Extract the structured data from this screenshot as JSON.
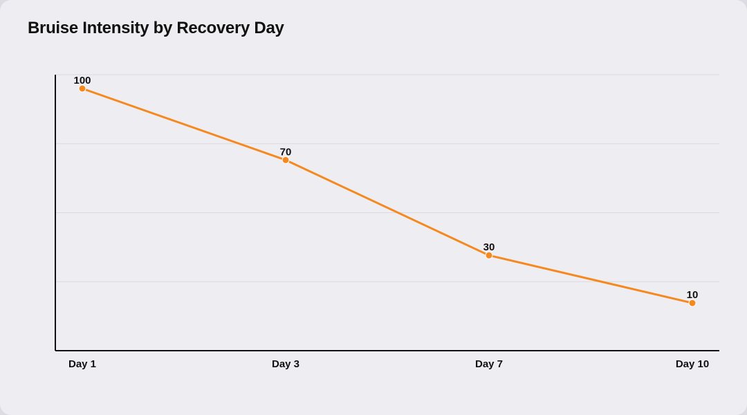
{
  "chart_data": {
    "type": "line",
    "title": "Bruise Intensity by Recovery Day",
    "xlabel": "",
    "ylabel": "",
    "categories": [
      "Day 1",
      "Day 3",
      "Day 7",
      "Day 10"
    ],
    "series": [
      {
        "values": [
          100,
          70,
          30,
          10
        ]
      }
    ],
    "ylim": [
      -10,
      100
    ],
    "grid": true,
    "legend": "none",
    "colors": {
      "line": "#f5891f",
      "grid": "#d9d9de",
      "axis": "#111111",
      "background": "#ededf2"
    }
  }
}
